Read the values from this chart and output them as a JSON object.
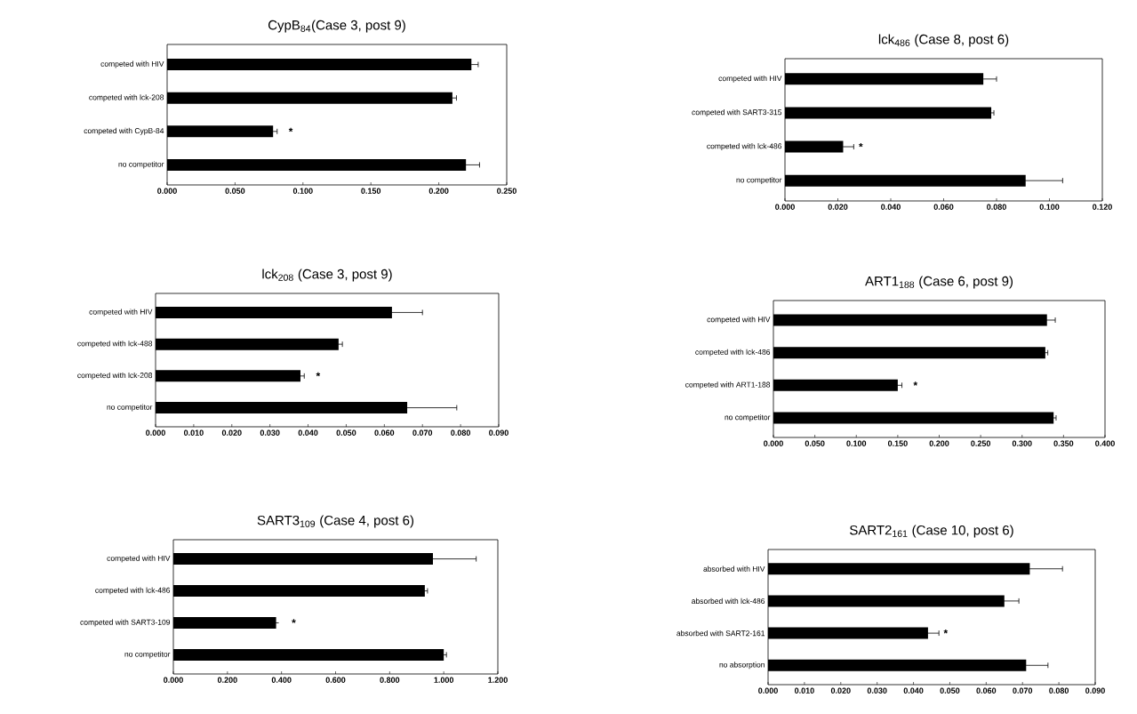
{
  "chart_data": [
    {
      "type": "bar",
      "orientation": "horizontal",
      "title": "CypB$_{84}$(Case 3, post 9)",
      "categories": [
        "competed with  HIV",
        "competed with  lck-208",
        "competed with CypB-84",
        "no competitor"
      ],
      "values": [
        0.224,
        0.21,
        0.078,
        0.22
      ],
      "errors": [
        0.005,
        0.003,
        0.003,
        0.01
      ],
      "color": "#000000",
      "xlim": [
        0,
        0.25
      ],
      "xticks": [
        {
          "value": 0,
          "label": "0.000"
        },
        {
          "value": 0.05,
          "label": "0.050"
        },
        {
          "value": 0.1,
          "label": "0.100"
        },
        {
          "value": 0.15,
          "label": "0.150"
        },
        {
          "value": 0.2,
          "label": "0.200"
        },
        {
          "value": 0.25,
          "label": "0.250"
        }
      ],
      "annotations": [
        {
          "text": "*",
          "x": 0.078,
          "y": "competed with CypB-84"
        }
      ]
    },
    {
      "type": "bar",
      "orientation": "horizontal",
      "title": "lck$_{486}$ (Case 8, post 6)",
      "categories": [
        "competed with HIV",
        "competed with SART3-315",
        "competed with lck-486",
        "no competitor"
      ],
      "values": [
        0.075,
        0.078,
        0.022,
        0.091
      ],
      "errors": [
        0.005,
        0.001,
        0.004,
        0.014
      ],
      "color": "#000000",
      "xlim": [
        0,
        0.12
      ],
      "xticks": [
        {
          "value": 0,
          "label": "0.000"
        },
        {
          "value": 0.02,
          "label": "0.020"
        },
        {
          "value": 0.04,
          "label": "0.040"
        },
        {
          "value": 0.06,
          "label": "0.060"
        },
        {
          "value": 0.08,
          "label": "0.080"
        },
        {
          "value": 0.1,
          "label": "0.100"
        },
        {
          "value": 0.12,
          "label": "0.120"
        }
      ],
      "annotations": [
        {
          "text": "*",
          "x": 0.022,
          "y": "competed with lck-486"
        }
      ]
    },
    {
      "type": "bar",
      "orientation": "horizontal",
      "title": "lck$_{208}$ (Case 3, post 9)",
      "categories": [
        "competed with HIV",
        "competed with lck-488",
        "competed with lck-208",
        "no competitor"
      ],
      "values": [
        0.062,
        0.048,
        0.038,
        0.066
      ],
      "errors": [
        0.008,
        0.001,
        0.001,
        0.013
      ],
      "color": "#000000",
      "xlim": [
        0,
        0.09
      ],
      "xticks": [
        {
          "value": 0,
          "label": "0.000"
        },
        {
          "value": 0.01,
          "label": "0.010"
        },
        {
          "value": 0.02,
          "label": "0.020"
        },
        {
          "value": 0.03,
          "label": "0.030"
        },
        {
          "value": 0.04,
          "label": "0.040"
        },
        {
          "value": 0.05,
          "label": "0.050"
        },
        {
          "value": 0.06,
          "label": "0.060"
        },
        {
          "value": 0.07,
          "label": "0.070"
        },
        {
          "value": 0.08,
          "label": "0.080"
        },
        {
          "value": 0.09,
          "label": "0.090"
        }
      ],
      "annotations": [
        {
          "text": "*",
          "x": 0.038,
          "y": "competed with lck-208"
        }
      ]
    },
    {
      "type": "bar",
      "orientation": "horizontal",
      "title": "ART1$_{188}$ (Case 6, post 9)",
      "categories": [
        "competed with HIV",
        "competed with lck-486",
        "competed with ART1-188",
        "no competitor"
      ],
      "values": [
        0.33,
        0.328,
        0.15,
        0.338
      ],
      "errors": [
        0.01,
        0.003,
        0.005,
        0.003
      ],
      "color": "#000000",
      "xlim": [
        0,
        0.4
      ],
      "xticks": [
        {
          "value": 0,
          "label": "0.000"
        },
        {
          "value": 0.05,
          "label": "0.050"
        },
        {
          "value": 0.1,
          "label": "0.100"
        },
        {
          "value": 0.15,
          "label": "0.150"
        },
        {
          "value": 0.2,
          "label": "0.200"
        },
        {
          "value": 0.25,
          "label": "0.250"
        },
        {
          "value": 0.3,
          "label": "0.300"
        },
        {
          "value": 0.35,
          "label": "0.350"
        },
        {
          "value": 0.4,
          "label": "0.400"
        }
      ],
      "annotations": [
        {
          "text": "*",
          "x": 0.15,
          "y": "competed with ART1-188"
        }
      ]
    },
    {
      "type": "bar",
      "orientation": "horizontal",
      "title": "SART3$_{109}$ (Case 4, post 6)",
      "categories": [
        "competed with HIV",
        "competed with lck-486",
        "competed with SART3-109",
        "no competitor"
      ],
      "values": [
        0.96,
        0.93,
        0.38,
        1.0
      ],
      "errors": [
        0.16,
        0.01,
        null,
        0.01
      ],
      "color": "#000000",
      "xlim": [
        0,
        1.2
      ],
      "xticks": [
        {
          "value": 0,
          "label": "0.000"
        },
        {
          "value": 0.2,
          "label": "0.200"
        },
        {
          "value": 0.4,
          "label": "0.400"
        },
        {
          "value": 0.6,
          "label": "0.600"
        },
        {
          "value": 0.8,
          "label": "0.800"
        },
        {
          "value": 1.0,
          "label": "1.000"
        },
        {
          "value": 1.2,
          "label": "1.200"
        }
      ],
      "annotations": [
        {
          "text": "*",
          "x": 0.38,
          "y": "competed with SART3-109"
        }
      ]
    },
    {
      "type": "bar",
      "orientation": "horizontal",
      "title": "SART2$_{161}$ (Case 10, post 6)",
      "categories": [
        "absorbed with HIV",
        "absorbed with lck-486",
        "absorbed with SART2-161",
        "no absorption"
      ],
      "values": [
        0.072,
        0.065,
        0.044,
        0.071
      ],
      "errors": [
        0.009,
        0.004,
        0.003,
        0.006
      ],
      "color": "#000000",
      "xlim": [
        0,
        0.09
      ],
      "xticks": [
        {
          "value": 0,
          "label": "0.000"
        },
        {
          "value": 0.01,
          "label": "0.010"
        },
        {
          "value": 0.02,
          "label": "0.020"
        },
        {
          "value": 0.03,
          "label": "0.030"
        },
        {
          "value": 0.04,
          "label": "0.040"
        },
        {
          "value": 0.05,
          "label": "0.050"
        },
        {
          "value": 0.06,
          "label": "0.060"
        },
        {
          "value": 0.07,
          "label": "0.070"
        },
        {
          "value": 0.08,
          "label": "0.080"
        },
        {
          "value": 0.09,
          "label": "0.090"
        }
      ],
      "annotations": [
        {
          "text": "*",
          "x": 0.044,
          "y": "absorbed with SART2-161"
        }
      ]
    }
  ]
}
